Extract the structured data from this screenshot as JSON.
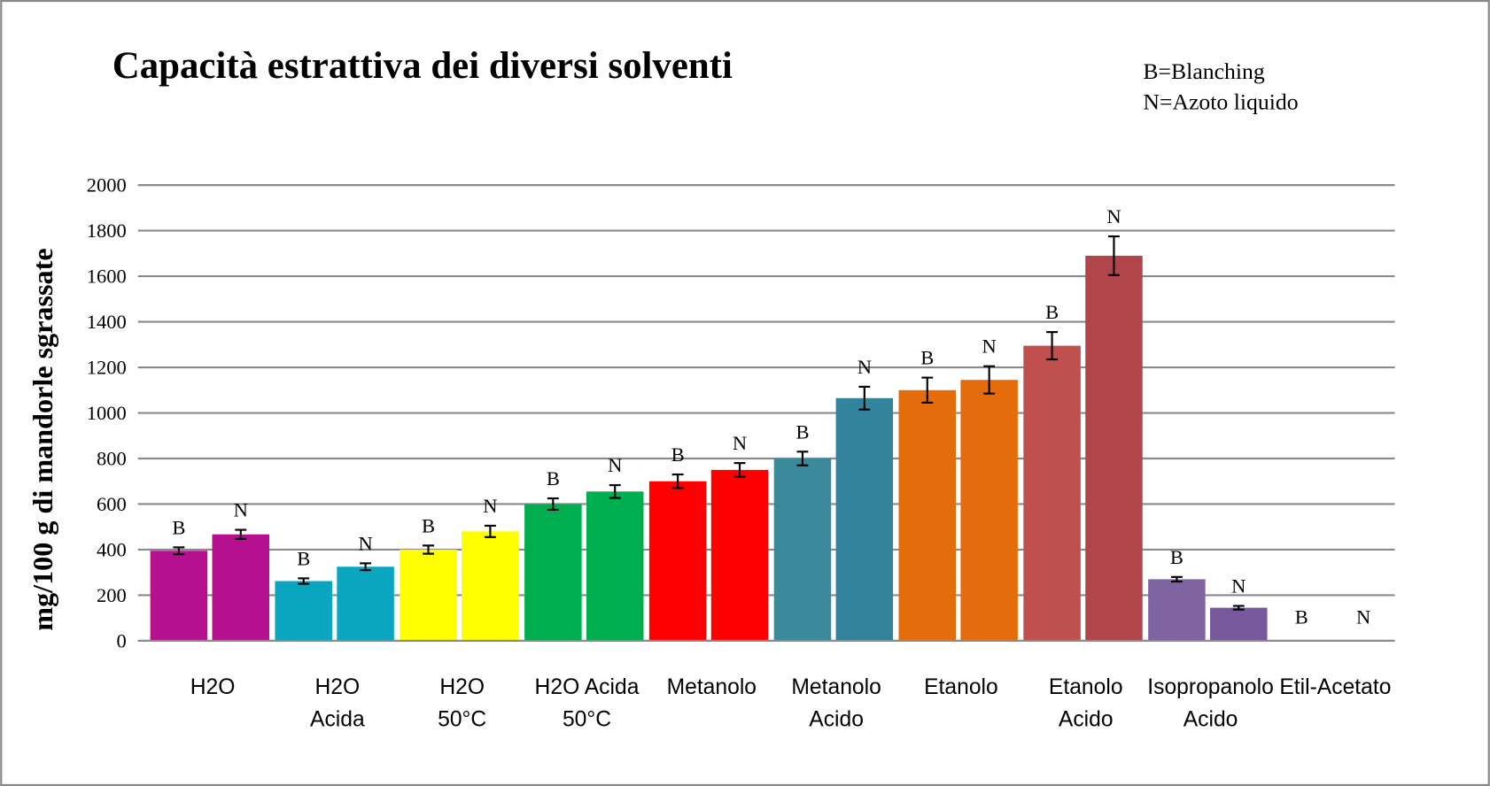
{
  "chart_data": {
    "type": "bar",
    "title": "Capacità estrattiva dei diversi solventi",
    "annotations": [
      "B=Blanching",
      "N=Azoto liquido"
    ],
    "y_label": "mg/100 g di mandorle sgrassate",
    "categories": [
      [
        "H2O"
      ],
      [
        "H2O",
        "Acida"
      ],
      [
        "H2O",
        "50°C"
      ],
      [
        "H2O  Acida",
        "50°C"
      ],
      [
        "Metanolo"
      ],
      [
        "Metanolo",
        "Acido"
      ],
      [
        "Etanolo"
      ],
      [
        "Etanolo",
        "Acido"
      ],
      [
        "Isopropanolo",
        "Acido"
      ],
      [
        "Etil-Acetato"
      ]
    ],
    "series": [
      {
        "name": "B",
        "values": [
          395,
          262,
          400,
          600,
          700,
          800,
          1100,
          1295,
          270,
          null
        ],
        "errors": [
          15,
          12,
          18,
          25,
          30,
          30,
          55,
          60,
          10,
          null
        ],
        "colors": [
          "#b5108f",
          "#0aa6bf",
          "#ffff00",
          "#00ad4f",
          "#ff0000",
          "#3a8a9c",
          "#e46c0a",
          "#c0504d",
          "#8064a2",
          "#888888"
        ]
      },
      {
        "name": "N",
        "values": [
          467,
          325,
          480,
          655,
          750,
          1065,
          1145,
          1690,
          145,
          null
        ],
        "errors": [
          20,
          15,
          25,
          28,
          30,
          50,
          60,
          85,
          8,
          null
        ],
        "colors": [
          "#b5108f",
          "#0aa6bf",
          "#ffff00",
          "#00ad4f",
          "#ff0000",
          "#31849b",
          "#e46c0a",
          "#b0464a",
          "#77589c",
          "#888888"
        ]
      }
    ],
    "ylim": [
      0,
      2000
    ],
    "yticks": [
      0,
      200,
      400,
      600,
      800,
      1000,
      1200,
      1400,
      1600,
      1800,
      2000
    ],
    "grid": true
  }
}
